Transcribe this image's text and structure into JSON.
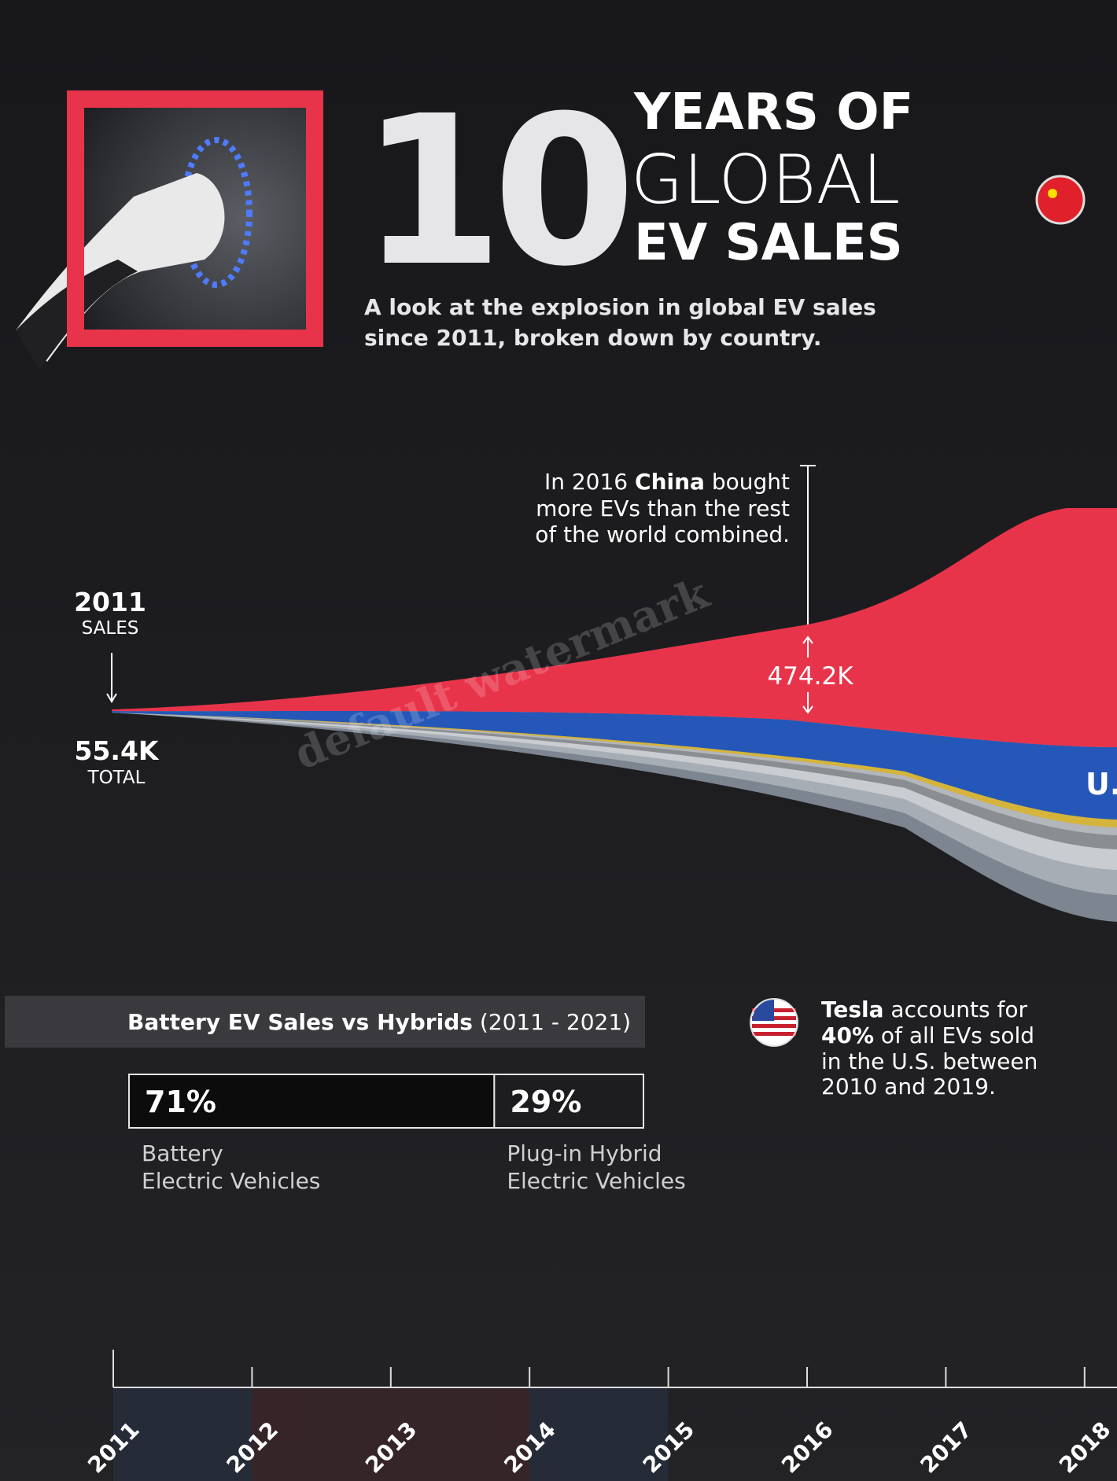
{
  "header": {
    "title_number": "10",
    "title_lines": [
      "YEARS OF",
      "GLOBAL",
      "EV SALES"
    ],
    "subtitle_lines": [
      "A look at the explosion in global EV sales",
      "since 2011, broken down by country."
    ]
  },
  "start_label": {
    "year": "2011",
    "caption": "SALES",
    "value": "55.4K",
    "value_caption": "TOTAL"
  },
  "china_note": {
    "first_line": [
      "In 2016 ",
      "China",
      " bought"
    ],
    "lines": [
      "more EVs than the rest",
      "of the world combined."
    ],
    "value": "474.2K"
  },
  "stream_label": "U.",
  "split": {
    "title": "Battery EV Sales vs Hybrids",
    "range": "(2011 - 2021)",
    "values": [
      71,
      29
    ],
    "value_labels": [
      "71%",
      "29%"
    ],
    "labels": [
      [
        "Battery",
        "Electric Vehicles"
      ],
      [
        "Plug-in Hybrid",
        "Electric Vehicles"
      ]
    ]
  },
  "tesla_note": {
    "first_line": [
      "Tesla",
      " accounts for"
    ],
    "second_line": [
      "40%",
      " of all EVs sold"
    ],
    "lines": [
      "in the U.S. between",
      "2010 and 2019."
    ]
  },
  "years": [
    "2011",
    "2012",
    "2013",
    "2014",
    "2015",
    "2016",
    "2017",
    "2018"
  ],
  "watermark": "default watermark"
}
